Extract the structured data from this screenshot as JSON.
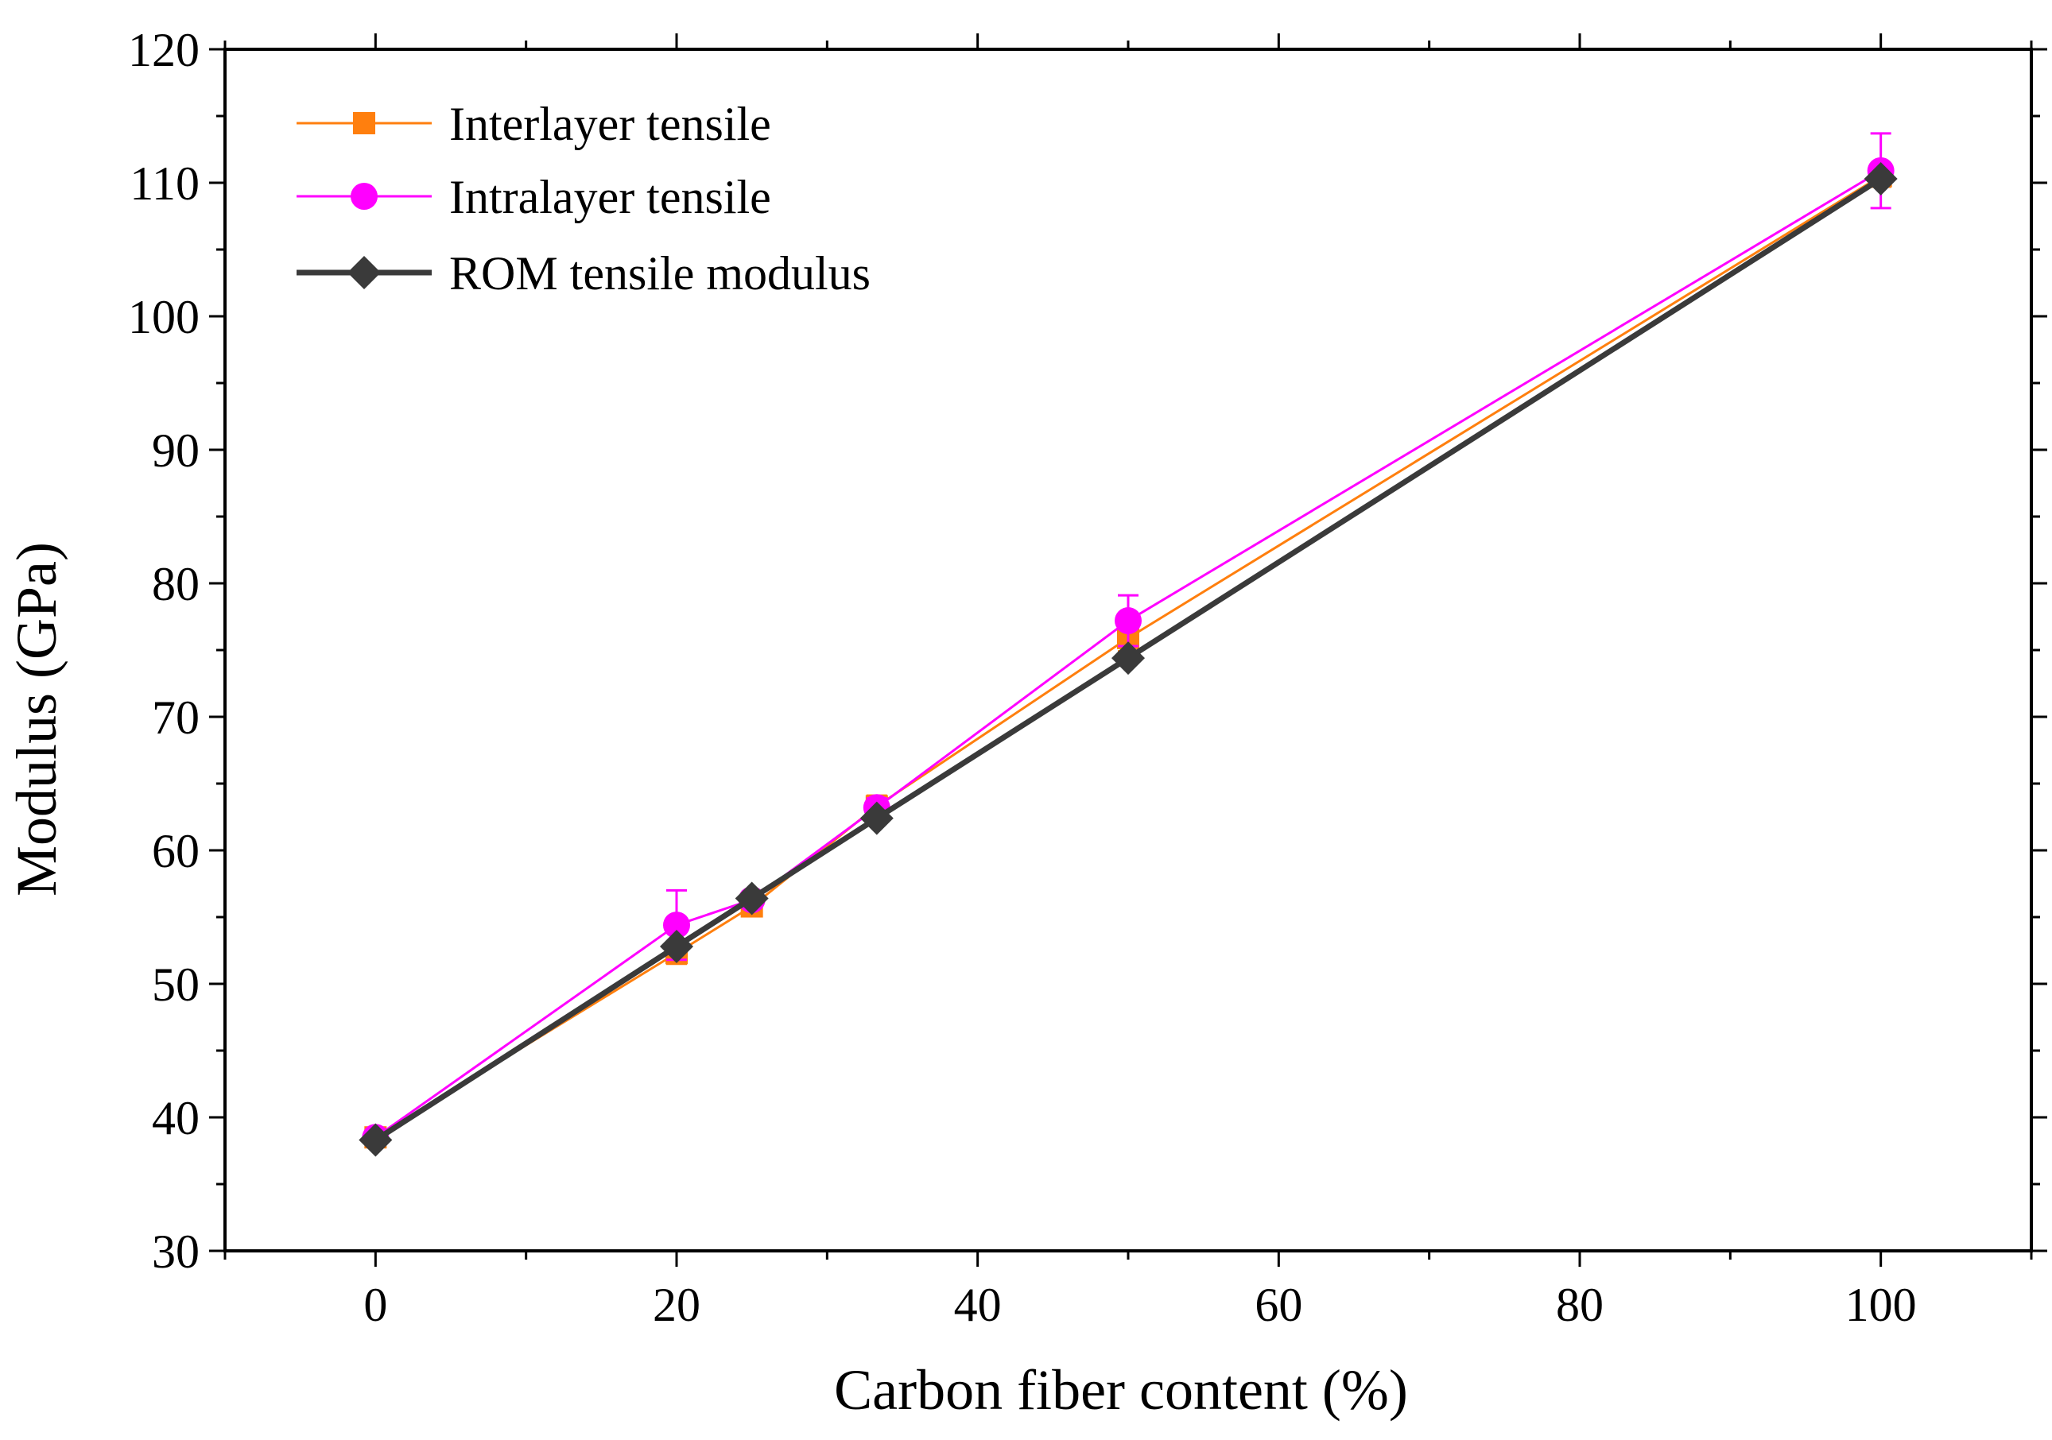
{
  "chart_data": {
    "type": "line",
    "title": "",
    "xlabel": "Carbon fiber content (%)",
    "ylabel": "Modulus (GPa)",
    "xlim": [
      -10,
      110
    ],
    "ylim": [
      30,
      120
    ],
    "xticks": [
      0,
      20,
      40,
      60,
      80,
      100
    ],
    "yticks": [
      30,
      40,
      50,
      60,
      70,
      80,
      90,
      100,
      110,
      120
    ],
    "grid": false,
    "legend_position": "top-left",
    "series": [
      {
        "name": "Interlayer tensile",
        "color": "#ff7f0e",
        "marker": "square",
        "x": [
          0,
          20,
          25,
          33.3,
          50,
          100
        ],
        "y": [
          38.5,
          52.3,
          55.8,
          63.3,
          75.9,
          110.5
        ],
        "err": [
          0.3,
          0.8,
          0.5,
          0.8,
          1.0,
          0.8
        ]
      },
      {
        "name": "Intralayer tensile",
        "color": "#ff00ff",
        "marker": "circle",
        "x": [
          0,
          20,
          25,
          33.3,
          50,
          100
        ],
        "y": [
          38.5,
          54.4,
          56.3,
          63.2,
          77.2,
          110.9
        ],
        "err": [
          0.3,
          2.6,
          0.6,
          0.7,
          1.9,
          2.8
        ]
      },
      {
        "name": "ROM tensile modulus",
        "color": "#3a3a3a",
        "marker": "diamond",
        "x": [
          0,
          20,
          25,
          33.3,
          50,
          100
        ],
        "y": [
          38.3,
          52.8,
          56.4,
          62.4,
          74.4,
          110.3
        ],
        "err": null
      }
    ]
  }
}
